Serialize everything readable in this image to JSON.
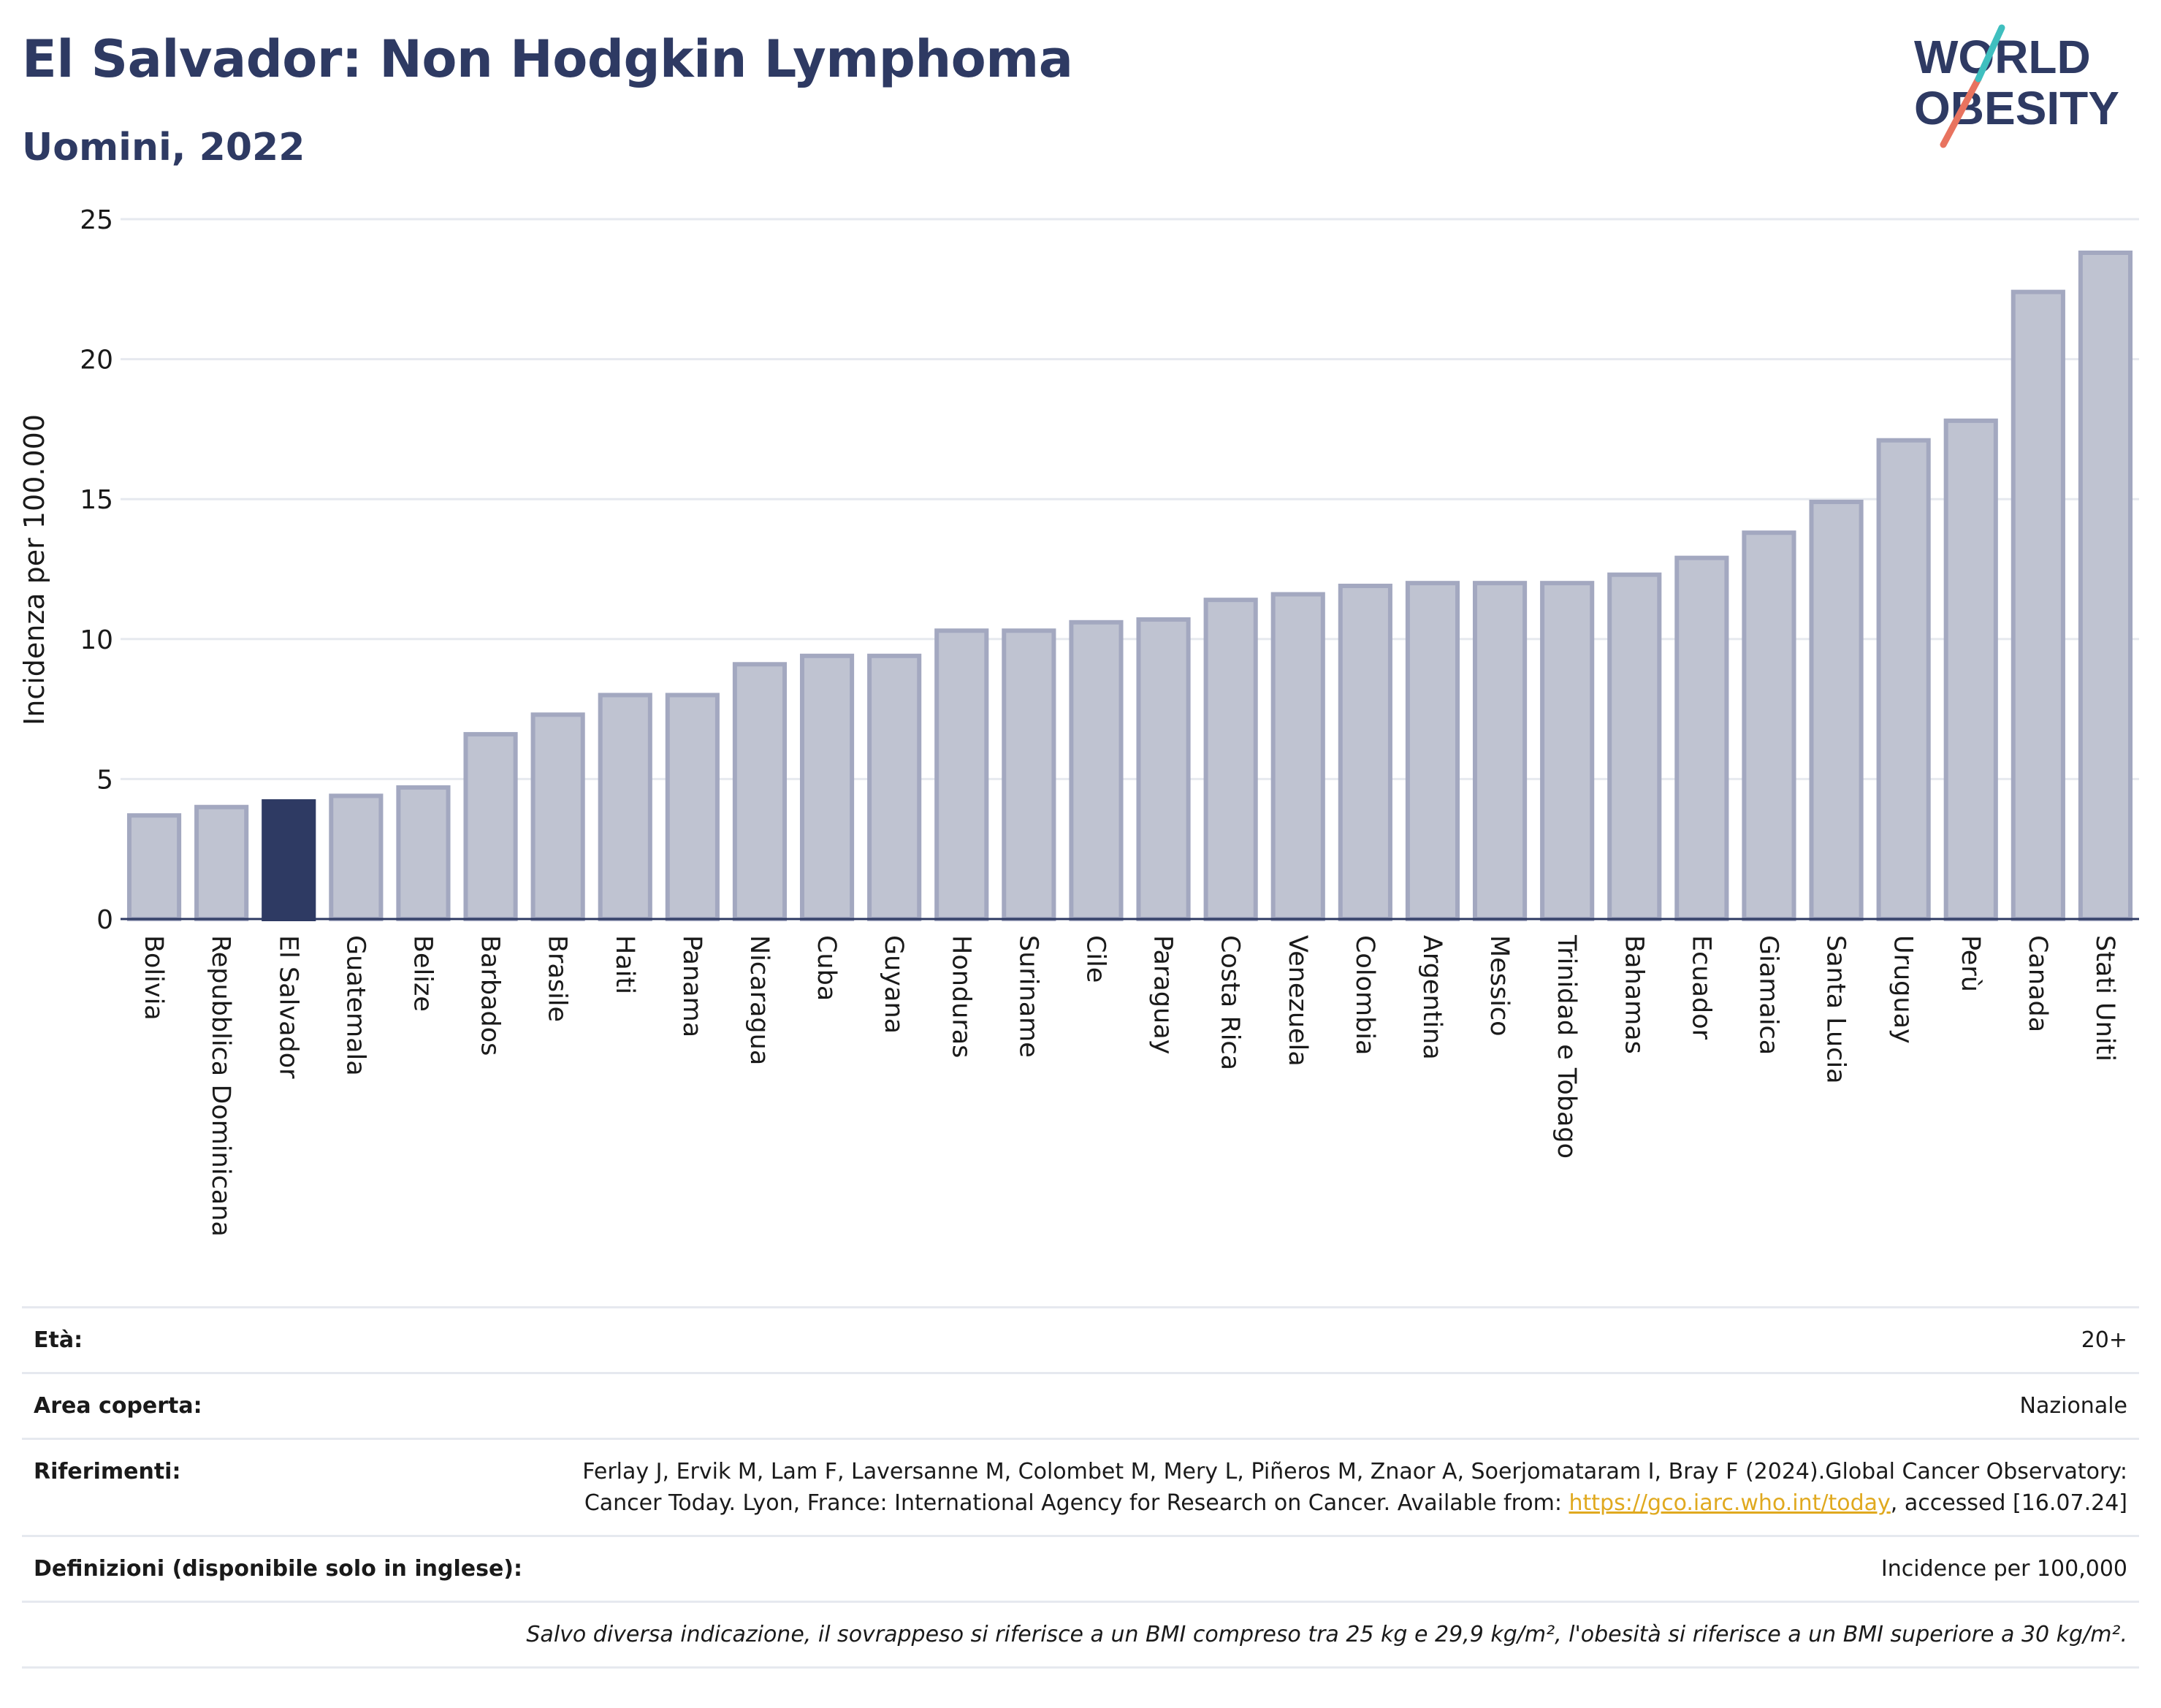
{
  "header": {
    "title": "El Salvador: Non Hodgkin Lymphoma",
    "subtitle": "Uomini, 2022"
  },
  "logo": {
    "line1": "WORLD",
    "line2": "OBESITY"
  },
  "colors": {
    "highlight": "#2e3a63",
    "bar_fill": "#bfc3d1",
    "bar_stroke": "#a3a8c0",
    "grid": "#e6e9ef",
    "link": "#e0a91f"
  },
  "chart_data": {
    "type": "bar",
    "ylabel": "Incidenza per 100.000",
    "xlabel": "",
    "ylim": [
      0,
      25
    ],
    "yticks": [
      0,
      5,
      10,
      15,
      20,
      25
    ],
    "grid": true,
    "highlight": "El Salvador",
    "categories": [
      "Bolivia",
      "Repubblica Dominicana",
      "El Salvador",
      "Guatemala",
      "Belize",
      "Barbados",
      "Brasile",
      "Haiti",
      "Panama",
      "Nicaragua",
      "Cuba",
      "Guyana",
      "Honduras",
      "Suriname",
      "Cile",
      "Paraguay",
      "Costa Rica",
      "Venezuela",
      "Colombia",
      "Argentina",
      "Messico",
      "Trinidad e Tobago",
      "Bahamas",
      "Ecuador",
      "Giamaica",
      "Santa Lucia",
      "Uruguay",
      "Perù",
      "Canada",
      "Stati Uniti"
    ],
    "values": [
      3.7,
      4.0,
      4.2,
      4.4,
      4.7,
      6.6,
      7.3,
      8.0,
      8.0,
      9.1,
      9.4,
      9.4,
      10.3,
      10.3,
      10.6,
      10.7,
      11.4,
      11.6,
      11.9,
      12.0,
      12.0,
      12.0,
      12.3,
      12.9,
      13.8,
      14.9,
      17.1,
      17.8,
      22.4,
      23.8
    ]
  },
  "meta": {
    "age_label": "Età:",
    "age_value": "20+",
    "area_label": "Area coperta:",
    "area_value": "Nazionale",
    "ref_label": "Riferimenti:",
    "ref_text": "Ferlay J, Ervik M, Lam F, Laversanne M, Colombet M, Mery L, Piñeros M, Znaor A, Soerjomataram I, Bray F (2024).Global Cancer Observatory: Cancer Today. Lyon, France: International Agency for Research on Cancer. Available from: ",
    "ref_link": "https://gco.iarc.who.int/today",
    "ref_tail": ", accessed [16.07.24]",
    "def_label": "Definizioni (disponibile solo in inglese):",
    "def_value": "Incidence per 100,000",
    "note": "Salvo diversa indicazione, il sovrappeso si riferisce a un BMI compreso tra 25 kg e 29,9 kg/m², l'obesità si riferisce a un BMI superiore a 30 kg/m²."
  }
}
